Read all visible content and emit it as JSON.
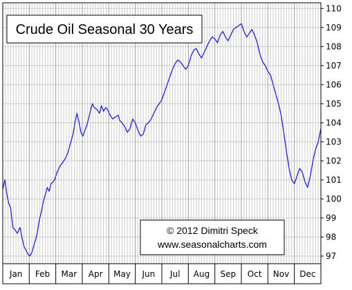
{
  "chart_data": {
    "type": "line",
    "title": "Crude Oil Seasonal 30 Years",
    "credit": {
      "line1": "© 2012  Dimitri Speck",
      "line2": "www.seasonalcharts.com"
    },
    "xlabel": "",
    "ylabel": "",
    "categories": [
      "Jan",
      "Feb",
      "Mar",
      "Apr",
      "May",
      "Jun",
      "Jul",
      "Aug",
      "Sep",
      "Oct",
      "Nov",
      "Dec"
    ],
    "yticks": [
      97,
      98,
      99,
      100,
      101,
      102,
      103,
      104,
      105,
      106,
      107,
      108,
      109,
      110
    ],
    "ylim": [
      96.6,
      110.3
    ],
    "xlim": [
      0,
      12
    ],
    "grid": true,
    "colors": {
      "line": "#2222cc",
      "grid": "#cccccc",
      "border": "#000000"
    },
    "series": [
      {
        "x": [
          0,
          0.08,
          0.16,
          0.22,
          0.3,
          0.38,
          0.45,
          0.55,
          0.65,
          0.72,
          0.8,
          0.88,
          0.95,
          1.02,
          1.1,
          1.18,
          1.25,
          1.3,
          1.38,
          1.45,
          1.52,
          1.6,
          1.68,
          1.75,
          1.82,
          1.9,
          1.95,
          2.05,
          2.15,
          2.25,
          2.35,
          2.45,
          2.55,
          2.65,
          2.72,
          2.8,
          2.88,
          2.95,
          3.02,
          3.1,
          3.18,
          3.25,
          3.32,
          3.38,
          3.45,
          3.55,
          3.65,
          3.72,
          3.8,
          3.88,
          3.95,
          4.05,
          4.15,
          4.25,
          4.35,
          4.42,
          4.5,
          4.6,
          4.7,
          4.8,
          4.9,
          5.0,
          5.1,
          5.2,
          5.3,
          5.4,
          5.5,
          5.6,
          5.7,
          5.8,
          5.9,
          6.0,
          6.1,
          6.2,
          6.3,
          6.4,
          6.5,
          6.6,
          6.7,
          6.8,
          6.9,
          7.0,
          7.1,
          7.2,
          7.3,
          7.4,
          7.5,
          7.6,
          7.7,
          7.8,
          7.9,
          8.0,
          8.1,
          8.2,
          8.3,
          8.4,
          8.5,
          8.6,
          8.7,
          8.8,
          8.9,
          9.0,
          9.1,
          9.2,
          9.3,
          9.4,
          9.5,
          9.6,
          9.7,
          9.8,
          9.9,
          10.0,
          10.1,
          10.2,
          10.3,
          10.4,
          10.5,
          10.6,
          10.7,
          10.8,
          10.9,
          11.0,
          11.1,
          11.2,
          11.3,
          11.4,
          11.5,
          11.6,
          11.7,
          11.8,
          11.9,
          12.0
        ],
        "values": [
          100.5,
          101.0,
          100.2,
          99.8,
          99.5,
          98.5,
          98.4,
          98.2,
          98.5,
          98.0,
          97.5,
          97.3,
          97.1,
          97.0,
          97.2,
          97.6,
          97.9,
          98.2,
          98.9,
          99.3,
          99.8,
          100.2,
          100.6,
          100.4,
          100.8,
          100.9,
          101.0,
          101.4,
          101.7,
          101.9,
          102.1,
          102.4,
          102.9,
          103.4,
          104.0,
          104.5,
          104.0,
          103.5,
          103.3,
          103.6,
          103.9,
          104.3,
          104.7,
          105.0,
          104.8,
          104.7,
          104.5,
          104.9,
          104.6,
          104.8,
          104.7,
          104.4,
          104.2,
          104.3,
          104.4,
          104.1,
          104.0,
          103.8,
          103.5,
          103.7,
          104.2,
          104.0,
          103.6,
          103.3,
          103.4,
          103.9,
          104.0,
          104.2,
          104.5,
          104.8,
          105.0,
          105.2,
          105.6,
          106.0,
          106.4,
          106.8,
          107.1,
          107.3,
          107.2,
          107.0,
          106.8,
          107.0,
          107.5,
          107.8,
          107.9,
          107.6,
          107.4,
          107.7,
          108.0,
          108.3,
          108.5,
          108.4,
          108.2,
          108.6,
          108.8,
          108.5,
          108.3,
          108.6,
          108.9,
          109.0,
          109.1,
          109.2,
          108.8,
          108.5,
          108.7,
          108.9,
          108.6,
          108.2,
          107.6,
          107.2,
          107.0,
          106.7,
          106.5,
          106.0,
          105.5,
          105.0,
          104.4,
          103.5,
          102.5,
          101.6,
          101.0,
          100.8,
          101.2,
          101.6,
          101.4,
          100.9,
          100.6,
          101.2,
          102.0,
          102.6,
          103.0,
          103.7
        ]
      }
    ]
  }
}
